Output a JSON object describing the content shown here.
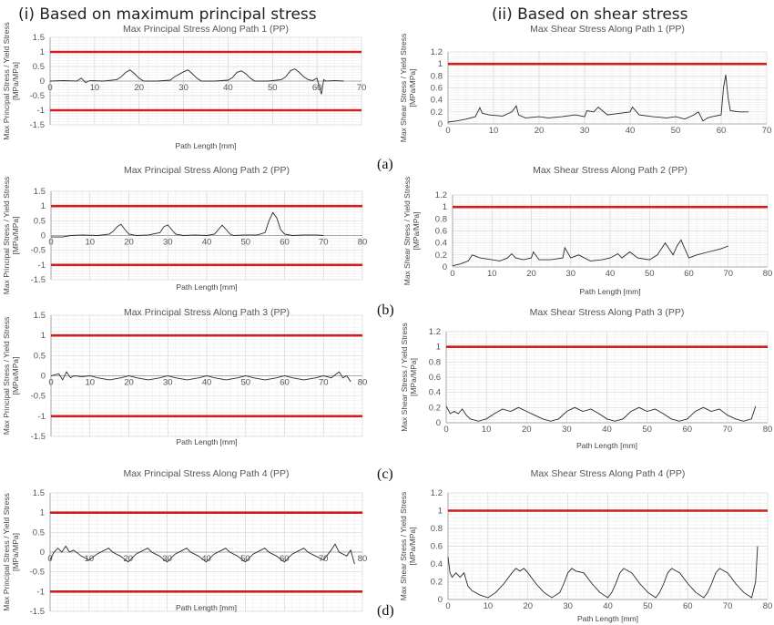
{
  "column_titles": [
    "(i) Based on maximum principal stress",
    "(ii) Based on shear stress"
  ],
  "row_labels": [
    "(a)",
    "(b)",
    "(c)",
    "(d)"
  ],
  "colors": {
    "threshold": "#cc1f1f",
    "series": "#2a2a2a",
    "axis": "#999999",
    "grid_major": "#d6d6d6",
    "grid_minor": "#eeeeee"
  },
  "chart_data": [
    {
      "type": "line",
      "title": "Max Principal Stress Along Path 1 (PP)",
      "xlabel": "Path Length [mm]",
      "ylabel": "Max Principal Stress / Yield Stress [MPa/MPa]",
      "xlim": [
        0,
        70
      ],
      "ylim": [
        -1.5,
        1.5
      ],
      "xticks": [
        0,
        10,
        20,
        30,
        40,
        50,
        60,
        70
      ],
      "yticks": [
        -1.5,
        -1,
        -0.5,
        0,
        0.5,
        1,
        1.5
      ],
      "thresholds": [
        1,
        -1
      ],
      "grid": true,
      "x": [
        0,
        3,
        6,
        7,
        8,
        9,
        12,
        15,
        16,
        17,
        18,
        19,
        20,
        21,
        24,
        27,
        28,
        30,
        31,
        32,
        33,
        34,
        37,
        40,
        41,
        42,
        43,
        44,
        45,
        46,
        49,
        52,
        53,
        54,
        55,
        56,
        57,
        58,
        59,
        60,
        60.5,
        61,
        61.5,
        62,
        64,
        66
      ],
      "y": [
        0,
        0.02,
        0,
        0.1,
        -0.05,
        0.02,
        0,
        0.05,
        0.15,
        0.3,
        0.38,
        0.25,
        0.1,
        0,
        0,
        0.03,
        0.15,
        0.32,
        0.38,
        0.25,
        0.1,
        0,
        0,
        0.03,
        0.12,
        0.3,
        0.35,
        0.25,
        0.1,
        0,
        0,
        0.05,
        0.15,
        0.35,
        0.42,
        0.3,
        0.15,
        0.05,
        0.02,
        0.1,
        -0.2,
        -0.45,
        0.05,
        0,
        0.02,
        0
      ]
    },
    {
      "type": "line",
      "title": "Max Shear Stress Along Path 1 (PP)",
      "xlabel": "",
      "ylabel": "Max Shear Stress / Yield Stress [MPa/MPa]",
      "xlim": [
        0,
        70
      ],
      "ylim": [
        0,
        1.2
      ],
      "xticks": [
        0,
        10,
        20,
        30,
        40,
        50,
        60,
        70
      ],
      "yticks": [
        0,
        0.2,
        0.4,
        0.6,
        0.8,
        1,
        1.2
      ],
      "thresholds": [
        1
      ],
      "grid": true,
      "x": [
        0,
        2,
        4,
        6,
        7,
        7.5,
        9,
        12,
        14,
        15,
        15.5,
        17,
        20,
        22,
        25,
        28,
        30,
        30.5,
        32,
        33,
        35,
        38,
        40,
        40.5,
        42,
        45,
        48,
        50,
        52,
        54,
        55,
        56,
        57,
        58,
        60,
        60.5,
        61,
        61.5,
        62,
        64,
        66
      ],
      "y": [
        0.03,
        0.05,
        0.08,
        0.12,
        0.27,
        0.18,
        0.15,
        0.13,
        0.2,
        0.3,
        0.15,
        0.1,
        0.12,
        0.1,
        0.12,
        0.15,
        0.12,
        0.22,
        0.2,
        0.28,
        0.15,
        0.18,
        0.2,
        0.28,
        0.15,
        0.12,
        0.1,
        0.12,
        0.08,
        0.15,
        0.2,
        0.05,
        0.1,
        0.12,
        0.15,
        0.6,
        0.82,
        0.45,
        0.22,
        0.2,
        0.2
      ]
    },
    {
      "type": "line",
      "title": "Max Principal Stress Along Path 2 (PP)",
      "xlabel": "Path Length [mm]",
      "ylabel": "Max Principal Stress / Yield Stress [MPa/MPa]",
      "xlim": [
        0,
        80
      ],
      "ylim": [
        -1.5,
        1.5
      ],
      "xticks": [
        0,
        10,
        20,
        30,
        40,
        50,
        60,
        70,
        80
      ],
      "yticks": [
        -1.5,
        -1,
        -0.5,
        0,
        0.5,
        1,
        1.5
      ],
      "thresholds": [
        1,
        -1
      ],
      "grid": true,
      "x": [
        0,
        3,
        5,
        8,
        12,
        15,
        16,
        17,
        18,
        19,
        20,
        22,
        25,
        28,
        29,
        30,
        31,
        32,
        34,
        37,
        40,
        42,
        43,
        44,
        45,
        46,
        47,
        50,
        53,
        55,
        56,
        57,
        58,
        59,
        60,
        62,
        65,
        68,
        70
      ],
      "y": [
        -0.05,
        -0.05,
        0,
        0.02,
        0,
        0.05,
        0.15,
        0.3,
        0.38,
        0.2,
        0.05,
        0,
        0.02,
        0.1,
        0.3,
        0.36,
        0.2,
        0.05,
        0,
        0.02,
        0,
        0.05,
        0.2,
        0.35,
        0.2,
        0.05,
        0,
        0.02,
        0.02,
        0.1,
        0.5,
        0.78,
        0.6,
        0.2,
        0.05,
        0,
        0.02,
        0.02,
        0
      ]
    },
    {
      "type": "line",
      "title": "Max Shear Stress Along Path 2 (PP)",
      "xlabel": "Path Length [mm]",
      "ylabel": "Max Shear Stress / Yield Stress [MPa/MPa]",
      "xlim": [
        0,
        80
      ],
      "ylim": [
        0,
        1.2
      ],
      "xticks": [
        0,
        10,
        20,
        30,
        40,
        50,
        60,
        70,
        80
      ],
      "yticks": [
        0,
        0.2,
        0.4,
        0.6,
        0.8,
        1,
        1.2
      ],
      "thresholds": [
        1
      ],
      "grid": true,
      "x": [
        0,
        2,
        4,
        5,
        7,
        10,
        12,
        14,
        15,
        16,
        18,
        20,
        20.5,
        22,
        25,
        28,
        28.5,
        30,
        32,
        35,
        38,
        40,
        42,
        43,
        45,
        47,
        50,
        52,
        53,
        54,
        55,
        56,
        57,
        58,
        59,
        60,
        62,
        65,
        68,
        70
      ],
      "y": [
        0.02,
        0.05,
        0.1,
        0.2,
        0.15,
        0.12,
        0.1,
        0.15,
        0.22,
        0.15,
        0.12,
        0.15,
        0.25,
        0.12,
        0.12,
        0.15,
        0.32,
        0.15,
        0.2,
        0.1,
        0.12,
        0.15,
        0.22,
        0.15,
        0.25,
        0.15,
        0.12,
        0.2,
        0.3,
        0.4,
        0.3,
        0.2,
        0.35,
        0.45,
        0.3,
        0.15,
        0.2,
        0.25,
        0.3,
        0.35
      ]
    },
    {
      "type": "line",
      "title": "Max Principal Stress Along Path 3 (PP)",
      "xlabel": "Path Length [mm]",
      "ylabel": "Max Principal Stress / Yield Stress [MPa/MPa]",
      "xlim": [
        0,
        80
      ],
      "ylim": [
        -1.5,
        1.5
      ],
      "xticks": [
        0,
        10,
        20,
        30,
        40,
        50,
        60,
        70,
        80
      ],
      "yticks": [
        -1.5,
        -1,
        -0.5,
        0,
        0.5,
        1,
        1.5
      ],
      "thresholds": [
        1,
        -1
      ],
      "grid": true,
      "x": [
        0,
        2,
        3,
        4,
        5,
        6,
        8,
        10,
        12,
        15,
        18,
        20,
        22,
        25,
        28,
        30,
        32,
        35,
        38,
        40,
        42,
        45,
        48,
        50,
        52,
        55,
        58,
        60,
        62,
        65,
        68,
        70,
        72,
        74,
        75,
        76,
        77
      ],
      "y": [
        0,
        0.05,
        -0.1,
        0.1,
        -0.05,
        0,
        -0.02,
        0,
        -0.05,
        -0.1,
        -0.05,
        0,
        -0.05,
        -0.1,
        -0.05,
        0,
        -0.05,
        -0.1,
        -0.05,
        0,
        -0.05,
        -0.1,
        -0.05,
        0,
        -0.05,
        -0.1,
        -0.05,
        0,
        -0.05,
        -0.1,
        -0.05,
        0,
        -0.05,
        0.1,
        -0.05,
        0,
        -0.15
      ]
    },
    {
      "type": "line",
      "title": "Max Shear Stress Along Path 3 (PP)",
      "xlabel": "Path Length [mm]",
      "ylabel": "Max Shear Stress / Yield Stress [MPa/MPa]",
      "xlim": [
        0,
        80
      ],
      "ylim": [
        0,
        1.2
      ],
      "xticks": [
        0,
        10,
        20,
        30,
        40,
        50,
        60,
        70,
        80
      ],
      "yticks": [
        0,
        0.2,
        0.4,
        0.6,
        0.8,
        1,
        1.2
      ],
      "thresholds": [
        1
      ],
      "grid": true,
      "x": [
        0,
        1,
        2,
        3,
        4,
        5,
        6,
        8,
        10,
        12,
        14,
        16,
        18,
        20,
        22,
        24,
        26,
        28,
        30,
        32,
        34,
        36,
        38,
        40,
        42,
        44,
        46,
        48,
        50,
        52,
        54,
        56,
        58,
        60,
        62,
        64,
        66,
        68,
        70,
        72,
        74,
        76,
        77
      ],
      "y": [
        0.22,
        0.12,
        0.15,
        0.12,
        0.18,
        0.1,
        0.05,
        0.02,
        0.05,
        0.12,
        0.18,
        0.15,
        0.2,
        0.15,
        0.1,
        0.05,
        0.02,
        0.05,
        0.15,
        0.2,
        0.15,
        0.18,
        0.12,
        0.05,
        0.02,
        0.05,
        0.15,
        0.2,
        0.15,
        0.18,
        0.12,
        0.05,
        0.02,
        0.05,
        0.15,
        0.2,
        0.15,
        0.18,
        0.1,
        0.05,
        0.02,
        0.05,
        0.22
      ]
    },
    {
      "type": "line",
      "title": "Max Principal Stress Along Path 4 (PP)",
      "xlabel": "Path Length [mm]",
      "ylabel": "Max Principal Stress / Yield Stress [MPa/MPa]",
      "xlim": [
        0,
        80
      ],
      "ylim": [
        -1.5,
        1.5
      ],
      "xticks": [
        0,
        10,
        20,
        30,
        40,
        50,
        60,
        70,
        80
      ],
      "yticks": [
        -1.5,
        -1,
        -0.5,
        0,
        0.5,
        1,
        1.5
      ],
      "thresholds": [
        1,
        -1
      ],
      "grid": true,
      "x": [
        0,
        1,
        2,
        3,
        4,
        5,
        6,
        8,
        10,
        12,
        14,
        15,
        16,
        18,
        20,
        22,
        24,
        25,
        26,
        28,
        30,
        32,
        34,
        35,
        36,
        38,
        40,
        42,
        44,
        45,
        46,
        48,
        50,
        52,
        54,
        55,
        56,
        58,
        60,
        62,
        64,
        65,
        66,
        68,
        70,
        72,
        73,
        74,
        76,
        77,
        78
      ],
      "y": [
        -0.2,
        0,
        0.1,
        0,
        0.15,
        0,
        0.05,
        -0.1,
        -0.2,
        -0.05,
        0.05,
        0.1,
        0,
        -0.1,
        -0.25,
        -0.05,
        0.05,
        0.1,
        0,
        -0.1,
        -0.25,
        -0.05,
        0.05,
        0.1,
        0,
        -0.1,
        -0.25,
        -0.05,
        0.05,
        0.1,
        0,
        -0.1,
        -0.25,
        -0.05,
        0.05,
        0.1,
        0,
        -0.1,
        -0.25,
        -0.05,
        0.05,
        0.1,
        0,
        -0.1,
        -0.2,
        0.05,
        0.2,
        0,
        -0.1,
        0.05,
        -0.3
      ]
    },
    {
      "type": "line",
      "title": "Max Shear Stress Along Path 4 (PP)",
      "xlabel": "Path Length [mm]",
      "ylabel": "Max Shear Stress / Yield Stress [MPa/MPa]",
      "xlim": [
        0,
        80
      ],
      "ylim": [
        0,
        1.2
      ],
      "xticks": [
        0,
        10,
        20,
        30,
        40,
        50,
        60,
        70,
        80
      ],
      "yticks": [
        0,
        0.2,
        0.4,
        0.6,
        0.8,
        1,
        1.2
      ],
      "thresholds": [
        1
      ],
      "grid": true,
      "x": [
        0,
        0.5,
        1,
        2,
        3,
        4,
        5,
        6,
        8,
        10,
        12,
        14,
        16,
        17,
        18,
        19,
        20,
        22,
        24,
        26,
        28,
        29,
        30,
        31,
        32,
        34,
        36,
        38,
        40,
        41,
        42,
        43,
        44,
        46,
        48,
        50,
        52,
        53,
        54,
        55,
        56,
        58,
        60,
        62,
        64,
        65,
        66,
        67,
        68,
        70,
        72,
        74,
        76,
        77,
        77.5
      ],
      "y": [
        0.48,
        0.3,
        0.25,
        0.3,
        0.25,
        0.3,
        0.15,
        0.1,
        0.05,
        0.02,
        0.08,
        0.18,
        0.3,
        0.35,
        0.32,
        0.35,
        0.3,
        0.18,
        0.08,
        0.02,
        0.08,
        0.18,
        0.3,
        0.35,
        0.32,
        0.3,
        0.18,
        0.08,
        0.02,
        0.08,
        0.18,
        0.3,
        0.35,
        0.3,
        0.18,
        0.08,
        0.02,
        0.08,
        0.18,
        0.3,
        0.35,
        0.3,
        0.18,
        0.08,
        0.02,
        0.08,
        0.18,
        0.3,
        0.35,
        0.3,
        0.18,
        0.08,
        0.02,
        0.2,
        0.6
      ]
    }
  ]
}
